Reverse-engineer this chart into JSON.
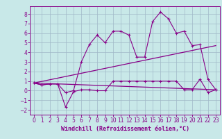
{
  "xlabel": "Windchill (Refroidissement éolien,°C)",
  "background_color": "#c8e8e8",
  "grid_color": "#a0b8c8",
  "line_color": "#880088",
  "spine_color": "#880088",
  "xlim": [
    -0.5,
    23.5
  ],
  "ylim": [
    -2.5,
    8.8
  ],
  "xticks": [
    0,
    1,
    2,
    3,
    4,
    5,
    6,
    7,
    8,
    9,
    10,
    11,
    12,
    13,
    14,
    15,
    16,
    17,
    18,
    19,
    20,
    21,
    22,
    23
  ],
  "yticks": [
    -2,
    -1,
    0,
    1,
    2,
    3,
    4,
    5,
    6,
    7,
    8
  ],
  "curve1_x": [
    0,
    1,
    2,
    3,
    4,
    5,
    6,
    7,
    8,
    9,
    10,
    11,
    12,
    13,
    14,
    15,
    16,
    17,
    18,
    19,
    20,
    21,
    22,
    23
  ],
  "curve1_y": [
    0.8,
    0.6,
    0.7,
    0.7,
    -0.2,
    0.0,
    3.0,
    4.8,
    5.8,
    5.0,
    6.2,
    6.2,
    5.8,
    3.5,
    3.5,
    7.2,
    8.2,
    7.5,
    6.0,
    6.2,
    4.7,
    4.8,
    1.2,
    0.1
  ],
  "curve2_x": [
    0,
    1,
    2,
    3,
    4,
    5,
    6,
    7,
    8,
    9,
    10,
    11,
    12,
    13,
    14,
    15,
    16,
    17,
    18,
    19,
    20,
    21,
    22,
    23
  ],
  "curve2_y": [
    0.8,
    0.6,
    0.7,
    0.7,
    -1.7,
    -0.1,
    0.1,
    0.1,
    0.0,
    0.0,
    1.0,
    1.0,
    1.0,
    1.0,
    1.0,
    1.0,
    1.0,
    1.0,
    1.0,
    0.1,
    0.1,
    1.2,
    -0.2,
    0.1
  ],
  "curve3_x": [
    0,
    23
  ],
  "curve3_y": [
    0.8,
    4.7
  ],
  "curve4_x": [
    0,
    23
  ],
  "curve4_y": [
    0.8,
    0.1
  ],
  "tick_fontsize": 5.5,
  "xlabel_fontsize": 6.0
}
